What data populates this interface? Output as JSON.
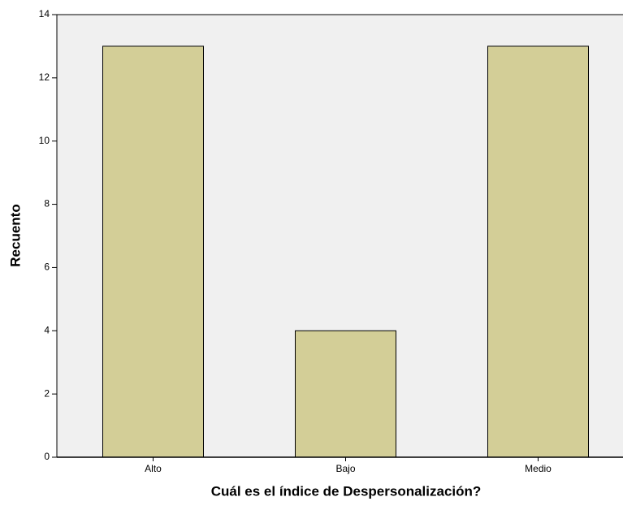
{
  "chart_data": {
    "type": "bar",
    "categories": [
      "Alto",
      "Bajo",
      "Medio"
    ],
    "values": [
      13,
      4,
      13
    ],
    "color": "#d3ce97",
    "x_label": "Cuál es el índice de Despersonalización?",
    "y_label": "Recuento",
    "ylim": [
      0,
      14
    ],
    "yticks": [
      0,
      2,
      4,
      6,
      8,
      10,
      12,
      14
    ],
    "grid": false
  }
}
